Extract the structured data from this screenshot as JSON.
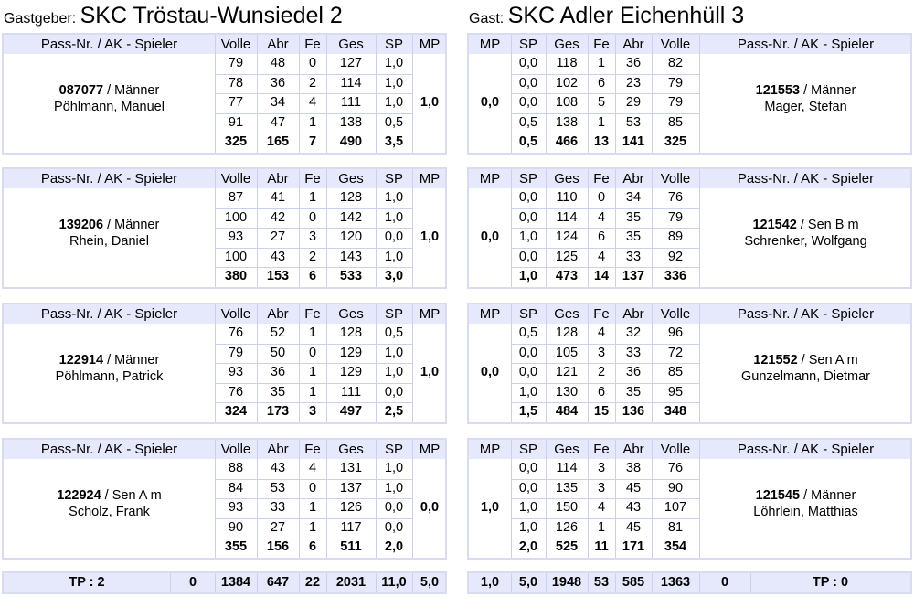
{
  "home": {
    "label": "Gastgeber:",
    "name": "SKC Tröstau-Wunsiedel 2"
  },
  "guest": {
    "label": "Gast:",
    "name": "SKC Adler Eichenhüll 3"
  },
  "home_headers": [
    "Pass-Nr. / AK - Spieler",
    "Volle",
    "Abr",
    "Fe",
    "Ges",
    "SP",
    "MP"
  ],
  "guest_headers": [
    "MP",
    "SP",
    "Ges",
    "Fe",
    "Abr",
    "Volle",
    "Pass-Nr. / AK - Spieler"
  ],
  "matches": [
    {
      "home": {
        "pass": "087077",
        "ak": " / Männer",
        "name": "Pöhlmann, Manuel",
        "mp": "1,0",
        "rows": [
          [
            "79",
            "48",
            "0",
            "127",
            "1,0"
          ],
          [
            "78",
            "36",
            "2",
            "114",
            "1,0"
          ],
          [
            "77",
            "34",
            "4",
            "111",
            "1,0"
          ],
          [
            "91",
            "47",
            "1",
            "138",
            "0,5"
          ]
        ],
        "total": [
          "325",
          "165",
          "7",
          "490",
          "3,5"
        ]
      },
      "guest": {
        "pass": "121553",
        "ak": " / Männer",
        "name": "Mager, Stefan",
        "mp": "0,0",
        "rows": [
          [
            "0,0",
            "118",
            "1",
            "36",
            "82"
          ],
          [
            "0,0",
            "102",
            "6",
            "23",
            "79"
          ],
          [
            "0,0",
            "108",
            "5",
            "29",
            "79"
          ],
          [
            "0,5",
            "138",
            "1",
            "53",
            "85"
          ]
        ],
        "total": [
          "0,5",
          "466",
          "13",
          "141",
          "325"
        ]
      }
    },
    {
      "home": {
        "pass": "139206",
        "ak": " / Männer",
        "name": "Rhein, Daniel",
        "mp": "1,0",
        "rows": [
          [
            "87",
            "41",
            "1",
            "128",
            "1,0"
          ],
          [
            "100",
            "42",
            "0",
            "142",
            "1,0"
          ],
          [
            "93",
            "27",
            "3",
            "120",
            "0,0"
          ],
          [
            "100",
            "43",
            "2",
            "143",
            "1,0"
          ]
        ],
        "total": [
          "380",
          "153",
          "6",
          "533",
          "3,0"
        ]
      },
      "guest": {
        "pass": "121542",
        "ak": " / Sen B m",
        "name": "Schrenker, Wolfgang",
        "mp": "0,0",
        "rows": [
          [
            "0,0",
            "110",
            "0",
            "34",
            "76"
          ],
          [
            "0,0",
            "114",
            "4",
            "35",
            "79"
          ],
          [
            "1,0",
            "124",
            "6",
            "35",
            "89"
          ],
          [
            "0,0",
            "125",
            "4",
            "33",
            "92"
          ]
        ],
        "total": [
          "1,0",
          "473",
          "14",
          "137",
          "336"
        ]
      }
    },
    {
      "home": {
        "pass": "122914",
        "ak": " / Männer",
        "name": "Pöhlmann, Patrick",
        "mp": "1,0",
        "rows": [
          [
            "76",
            "52",
            "1",
            "128",
            "0,5"
          ],
          [
            "79",
            "50",
            "0",
            "129",
            "1,0"
          ],
          [
            "93",
            "36",
            "1",
            "129",
            "1,0"
          ],
          [
            "76",
            "35",
            "1",
            "111",
            "0,0"
          ]
        ],
        "total": [
          "324",
          "173",
          "3",
          "497",
          "2,5"
        ]
      },
      "guest": {
        "pass": "121552",
        "ak": " / Sen A m",
        "name": "Gunzelmann, Dietmar",
        "mp": "0,0",
        "rows": [
          [
            "0,5",
            "128",
            "4",
            "32",
            "96"
          ],
          [
            "0,0",
            "105",
            "3",
            "33",
            "72"
          ],
          [
            "0,0",
            "121",
            "2",
            "36",
            "85"
          ],
          [
            "1,0",
            "130",
            "6",
            "35",
            "95"
          ]
        ],
        "total": [
          "1,5",
          "484",
          "15",
          "136",
          "348"
        ]
      }
    },
    {
      "home": {
        "pass": "122924",
        "ak": " / Sen A m",
        "name": "Scholz, Frank",
        "mp": "0,0",
        "rows": [
          [
            "88",
            "43",
            "4",
            "131",
            "1,0"
          ],
          [
            "84",
            "53",
            "0",
            "137",
            "1,0"
          ],
          [
            "93",
            "33",
            "1",
            "126",
            "0,0"
          ],
          [
            "90",
            "27",
            "1",
            "117",
            "0,0"
          ]
        ],
        "total": [
          "355",
          "156",
          "6",
          "511",
          "2,0"
        ]
      },
      "guest": {
        "pass": "121545",
        "ak": " / Männer",
        "name": "Löhrlein, Matthias",
        "mp": "1,0",
        "rows": [
          [
            "0,0",
            "114",
            "3",
            "38",
            "76"
          ],
          [
            "0,0",
            "135",
            "3",
            "45",
            "90"
          ],
          [
            "1,0",
            "150",
            "4",
            "43",
            "107"
          ],
          [
            "1,0",
            "126",
            "1",
            "45",
            "81"
          ]
        ],
        "total": [
          "2,0",
          "525",
          "11",
          "171",
          "354"
        ]
      }
    }
  ],
  "totals": {
    "home": [
      "TP : 2",
      "0",
      "1384",
      "647",
      "22",
      "2031",
      "11,0",
      "5,0"
    ],
    "guest": [
      "1,0",
      "5,0",
      "1948",
      "53",
      "585",
      "1363",
      "0",
      "TP : 0"
    ]
  },
  "colors": {
    "header_bg": "#e6e8fb",
    "border": "#d9dcf0",
    "grid": "#ccd0ea"
  }
}
